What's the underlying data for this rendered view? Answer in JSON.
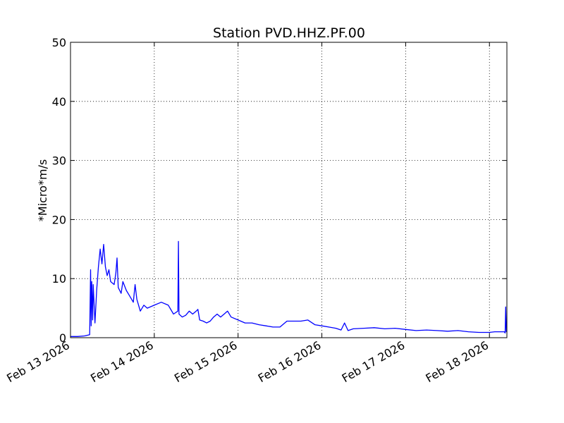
{
  "chart_data": {
    "type": "line",
    "title": "Station PVD.HHZ.PF.00",
    "xlabel": "",
    "ylabel": "*Micro*m/s",
    "xlim": [
      "2026-02-13T00:00",
      "2026-02-18T05:00"
    ],
    "ylim": [
      0,
      50
    ],
    "yticks": [
      0,
      10,
      20,
      30,
      40,
      50
    ],
    "xticks": [
      {
        "date": "2026-02-13T00:00",
        "label": "Feb 13 2026"
      },
      {
        "date": "2026-02-14T00:00",
        "label": "Feb 14 2026"
      },
      {
        "date": "2026-02-15T00:00",
        "label": "Feb 15 2026"
      },
      {
        "date": "2026-02-16T00:00",
        "label": "Feb 16 2026"
      },
      {
        "date": "2026-02-17T00:00",
        "label": "Feb 17 2026"
      },
      {
        "date": "2026-02-18T00:00",
        "label": "Feb 18 2026"
      }
    ],
    "grid": true,
    "colors": {
      "series": "#0000ff",
      "grid": "#000000",
      "frame": "#000000"
    },
    "series": [
      {
        "color": "#0000ff",
        "points": [
          [
            "2026-02-13T00:00",
            0.2
          ],
          [
            "2026-02-13T02:00",
            0.2
          ],
          [
            "2026-02-13T04:00",
            0.3
          ],
          [
            "2026-02-13T05:30",
            0.5
          ],
          [
            "2026-02-13T05:45",
            11.5
          ],
          [
            "2026-02-13T05:55",
            2.0
          ],
          [
            "2026-02-13T06:05",
            9.5
          ],
          [
            "2026-02-13T06:20",
            3.0
          ],
          [
            "2026-02-13T06:30",
            9.0
          ],
          [
            "2026-02-13T07:00",
            2.5
          ],
          [
            "2026-02-13T07:30",
            8.0
          ],
          [
            "2026-02-13T08:00",
            12.0
          ],
          [
            "2026-02-13T08:30",
            15.0
          ],
          [
            "2026-02-13T09:00",
            12.5
          ],
          [
            "2026-02-13T09:30",
            15.8
          ],
          [
            "2026-02-13T10:00",
            12.0
          ],
          [
            "2026-02-13T10:30",
            10.5
          ],
          [
            "2026-02-13T11:00",
            11.5
          ],
          [
            "2026-02-13T11:30",
            9.5
          ],
          [
            "2026-02-13T12:30",
            9.0
          ],
          [
            "2026-02-13T13:00",
            11.0
          ],
          [
            "2026-02-13T13:20",
            13.5
          ],
          [
            "2026-02-13T13:40",
            8.5
          ],
          [
            "2026-02-13T14:30",
            7.5
          ],
          [
            "2026-02-13T15:00",
            9.5
          ],
          [
            "2026-02-13T16:00",
            8.0
          ],
          [
            "2026-02-13T17:00",
            7.0
          ],
          [
            "2026-02-13T18:00",
            6.0
          ],
          [
            "2026-02-13T18:30",
            9.0
          ],
          [
            "2026-02-13T19:00",
            6.5
          ],
          [
            "2026-02-13T20:00",
            4.5
          ],
          [
            "2026-02-13T21:00",
            5.5
          ],
          [
            "2026-02-13T22:00",
            5.0
          ],
          [
            "2026-02-14T00:00",
            5.5
          ],
          [
            "2026-02-14T02:00",
            6.0
          ],
          [
            "2026-02-14T04:00",
            5.5
          ],
          [
            "2026-02-14T05:30",
            4.0
          ],
          [
            "2026-02-14T06:45",
            4.5
          ],
          [
            "2026-02-14T06:55",
            16.3
          ],
          [
            "2026-02-14T07:05",
            4.0
          ],
          [
            "2026-02-14T08:00",
            3.5
          ],
          [
            "2026-02-14T09:00",
            3.8
          ],
          [
            "2026-02-14T10:00",
            4.5
          ],
          [
            "2026-02-14T11:00",
            4.0
          ],
          [
            "2026-02-14T12:00",
            4.5
          ],
          [
            "2026-02-14T12:30",
            4.8
          ],
          [
            "2026-02-14T13:00",
            3.0
          ],
          [
            "2026-02-14T14:00",
            2.8
          ],
          [
            "2026-02-14T15:00",
            2.5
          ],
          [
            "2026-02-14T16:00",
            2.8
          ],
          [
            "2026-02-14T17:00",
            3.5
          ],
          [
            "2026-02-14T18:00",
            4.0
          ],
          [
            "2026-02-14T19:00",
            3.5
          ],
          [
            "2026-02-14T20:00",
            4.0
          ],
          [
            "2026-02-14T21:00",
            4.5
          ],
          [
            "2026-02-14T22:00",
            3.5
          ],
          [
            "2026-02-15T00:00",
            3.0
          ],
          [
            "2026-02-15T02:00",
            2.5
          ],
          [
            "2026-02-15T04:00",
            2.5
          ],
          [
            "2026-02-15T06:00",
            2.2
          ],
          [
            "2026-02-15T08:00",
            2.0
          ],
          [
            "2026-02-15T10:00",
            1.8
          ],
          [
            "2026-02-15T12:00",
            1.8
          ],
          [
            "2026-02-15T14:00",
            2.8
          ],
          [
            "2026-02-15T16:00",
            2.8
          ],
          [
            "2026-02-15T18:00",
            2.8
          ],
          [
            "2026-02-15T20:00",
            3.0
          ],
          [
            "2026-02-15T22:00",
            2.2
          ],
          [
            "2026-02-16T00:00",
            2.0
          ],
          [
            "2026-02-16T02:00",
            1.8
          ],
          [
            "2026-02-16T04:00",
            1.6
          ],
          [
            "2026-02-16T05:30",
            1.3
          ],
          [
            "2026-02-16T06:30",
            2.5
          ],
          [
            "2026-02-16T07:30",
            1.2
          ],
          [
            "2026-02-16T09:00",
            1.5
          ],
          [
            "2026-02-16T12:00",
            1.6
          ],
          [
            "2026-02-16T15:00",
            1.7
          ],
          [
            "2026-02-16T18:00",
            1.5
          ],
          [
            "2026-02-16T21:00",
            1.6
          ],
          [
            "2026-02-17T00:00",
            1.4
          ],
          [
            "2026-02-17T03:00",
            1.2
          ],
          [
            "2026-02-17T06:00",
            1.3
          ],
          [
            "2026-02-17T09:00",
            1.2
          ],
          [
            "2026-02-17T12:00",
            1.1
          ],
          [
            "2026-02-17T15:00",
            1.2
          ],
          [
            "2026-02-17T18:00",
            1.0
          ],
          [
            "2026-02-17T21:00",
            0.9
          ],
          [
            "2026-02-18T00:00",
            0.9
          ],
          [
            "2026-02-18T01:30",
            1.0
          ],
          [
            "2026-02-18T03:00",
            1.0
          ],
          [
            "2026-02-18T04:15",
            1.0
          ],
          [
            "2026-02-18T04:30",
            0.8
          ],
          [
            "2026-02-18T04:40",
            5.2
          ],
          [
            "2026-02-18T04:50",
            1.0
          ],
          [
            "2026-02-18T05:00",
            1.0
          ]
        ]
      }
    ]
  }
}
